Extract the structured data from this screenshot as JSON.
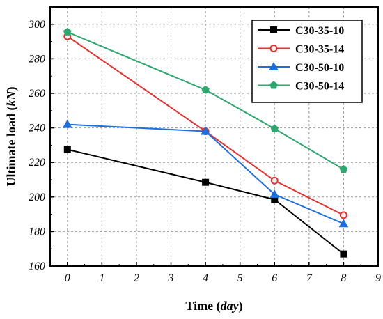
{
  "chart_data": {
    "type": "line",
    "xlabel": "Time",
    "xlabel_unit": "day",
    "ylabel": "Ultimate load",
    "ylabel_unit": "kN",
    "xlim": [
      -0.5,
      9
    ],
    "ylim": [
      160,
      310
    ],
    "xticks": [
      0,
      1,
      2,
      3,
      4,
      5,
      6,
      7,
      8,
      9
    ],
    "yticks": [
      160,
      180,
      200,
      220,
      240,
      260,
      280,
      300
    ],
    "grid": true,
    "legend_position": "top-right",
    "x": [
      0,
      4,
      6,
      8
    ],
    "series": [
      {
        "name": "C30-35-10",
        "values": [
          227.5,
          208.5,
          198.5,
          167
        ],
        "color": "#000000",
        "marker": "square"
      },
      {
        "name": "C30-35-14",
        "values": [
          293,
          238,
          209.5,
          189.5
        ],
        "color": "#e8302f",
        "marker": "circle-open"
      },
      {
        "name": "C30-50-10",
        "values": [
          242,
          238,
          201.5,
          184.5
        ],
        "color": "#1c6fe0",
        "marker": "triangle"
      },
      {
        "name": "C30-50-14",
        "values": [
          295.5,
          262,
          239.5,
          216
        ],
        "color": "#2ca86f",
        "marker": "pentagon"
      }
    ]
  }
}
